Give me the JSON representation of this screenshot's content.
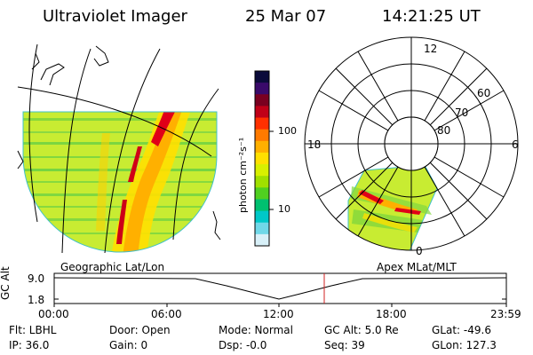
{
  "header": {
    "instrument": "Ultraviolet Imager",
    "date": "25 Mar 07",
    "time": "14:21:25 UT"
  },
  "panels": {
    "left_caption": "Geographic Lat/Lon",
    "right_caption": "Apex MLat/MLT"
  },
  "colorbar": {
    "unit_label": "photon cm⁻²s⁻¹",
    "ticks": [
      "100",
      "10"
    ],
    "colors": [
      "#0b0b3a",
      "#3a0a6a",
      "#7a0020",
      "#c00018",
      "#ff3000",
      "#ff7a00",
      "#ffb000",
      "#ffe000",
      "#d8f000",
      "#a0e000",
      "#50d020",
      "#00c070",
      "#00c8c8",
      "#70d8e8",
      "#d8f0f8"
    ]
  },
  "polar": {
    "mlt_labels": {
      "top": "12",
      "left": "18",
      "right": "6",
      "bottom": "0"
    },
    "lat_labels": [
      "60",
      "70",
      "80"
    ]
  },
  "altitude_plot": {
    "ylabel": "GC Alt",
    "y_ticks": [
      "9.0",
      "1.8"
    ],
    "x_ticks": [
      "00:00",
      "06:00",
      "12:00",
      "18:00",
      "23:59"
    ],
    "marker_color": "#d02020"
  },
  "footer": {
    "row1": {
      "flt": "Flt: LBHL",
      "door": "Door: Open",
      "mode": "Mode: Normal",
      "gc_alt": "GC Alt: 5.0 Re",
      "glat": "GLat: -49.6"
    },
    "row2": {
      "ip": "IP: 36.0",
      "gain": "Gain:  0",
      "dsp": "Dsp:   -0.0",
      "seq": "Seq: 39",
      "glon": "GLon: 127.3"
    }
  }
}
